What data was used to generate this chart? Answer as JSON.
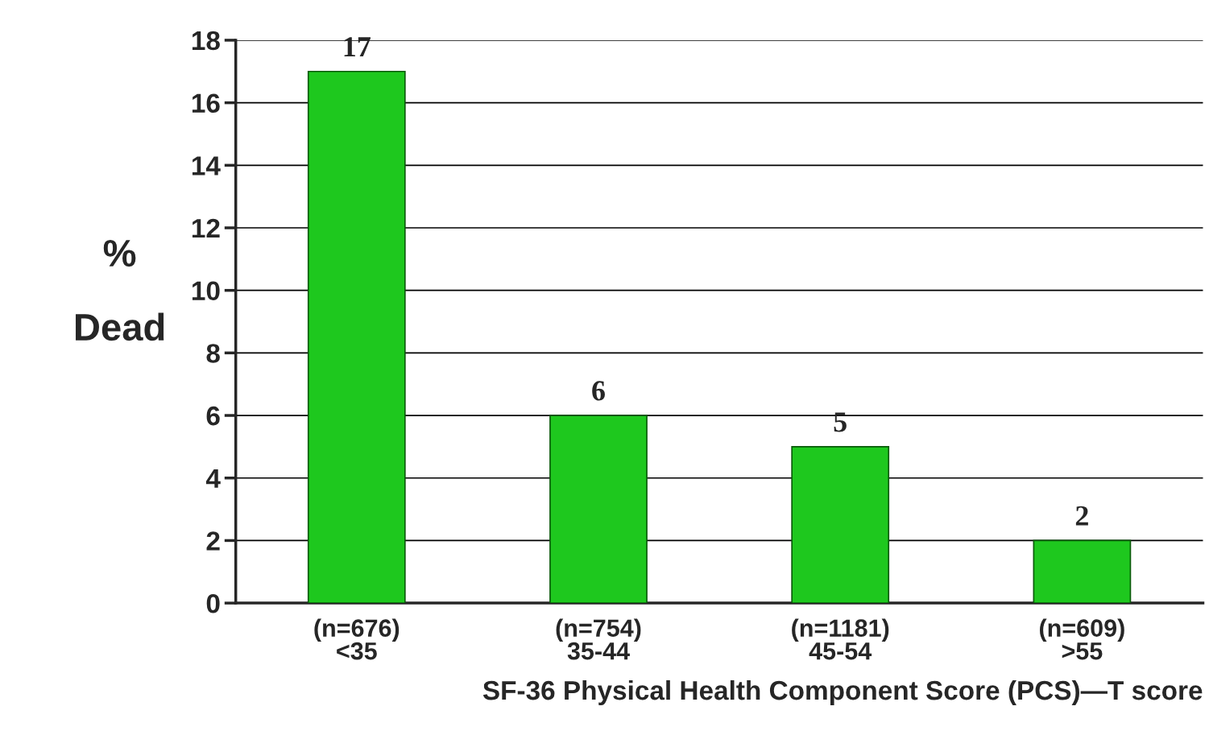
{
  "chart_data": {
    "type": "bar",
    "categories": [
      "(n=676)\n<35",
      "(n=754)\n35-44",
      "(n=1181)\n45-54",
      "(n=609)\n>55"
    ],
    "values": [
      17,
      6,
      5,
      2
    ],
    "color": "#1ec81e",
    "xlabel": "SF-36 Physical Health Component Score (PCS)—T score",
    "ylabel": "%\nDead",
    "ylim": [
      0,
      18
    ],
    "yticks": [
      0,
      2,
      4,
      6,
      8,
      10,
      12,
      14,
      16,
      18
    ],
    "grid": "y",
    "data_labels": true
  }
}
